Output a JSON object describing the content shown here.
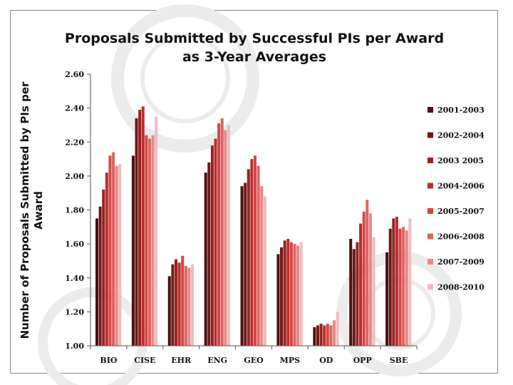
{
  "chart_data": {
    "type": "bar",
    "title_line1": "Proposals Submitted by Successful PIs per Award",
    "title_line2": "as 3-Year Averages",
    "xlabel": "",
    "ylabel_line1": "Number of Proposals Submitted by PIs per",
    "ylabel_line2": "Award",
    "ylim": [
      1.0,
      2.6
    ],
    "yticks": [
      "1.00",
      "1.20",
      "1.40",
      "1.60",
      "1.80",
      "2.00",
      "2.20",
      "2.40",
      "2.60"
    ],
    "grid": false,
    "legend_position": "right",
    "categories": [
      "BIO",
      "CISE",
      "EHR",
      "ENG",
      "GEO",
      "MPS",
      "OD",
      "OPP",
      "SBE"
    ],
    "series": [
      {
        "name": "2001-2003",
        "color": "#4a1010",
        "values": [
          1.75,
          2.12,
          1.41,
          2.02,
          1.94,
          1.54,
          1.11,
          1.63,
          1.55
        ]
      },
      {
        "name": "2002-2004",
        "color": "#6e1818",
        "values": [
          1.82,
          2.34,
          1.48,
          2.08,
          1.96,
          1.58,
          1.12,
          1.57,
          1.69
        ]
      },
      {
        "name": "2003  2005",
        "color": "#962222",
        "values": [
          1.92,
          2.39,
          1.51,
          2.18,
          2.04,
          1.62,
          1.13,
          1.61,
          1.75
        ]
      },
      {
        "name": "2004-2006",
        "color": "#bc2c2c",
        "values": [
          2.02,
          2.41,
          1.49,
          2.22,
          2.1,
          1.63,
          1.12,
          1.72,
          1.76
        ]
      },
      {
        "name": "2005-2007",
        "color": "#d84444",
        "values": [
          2.12,
          2.24,
          1.53,
          2.31,
          2.12,
          1.61,
          1.13,
          1.79,
          1.69
        ]
      },
      {
        "name": "2006-2008",
        "color": "#e06262",
        "values": [
          2.14,
          2.22,
          1.47,
          2.34,
          2.06,
          1.6,
          1.12,
          1.86,
          1.7
        ]
      },
      {
        "name": "2007-2009",
        "color": "#e68888",
        "values": [
          2.06,
          2.24,
          1.46,
          2.27,
          1.94,
          1.59,
          1.15,
          1.78,
          1.68
        ]
      },
      {
        "name": "2008-2010",
        "color": "#efbcbc",
        "values": [
          2.07,
          2.35,
          1.48,
          2.3,
          1.88,
          1.61,
          1.2,
          1.64,
          1.75
        ]
      }
    ]
  }
}
